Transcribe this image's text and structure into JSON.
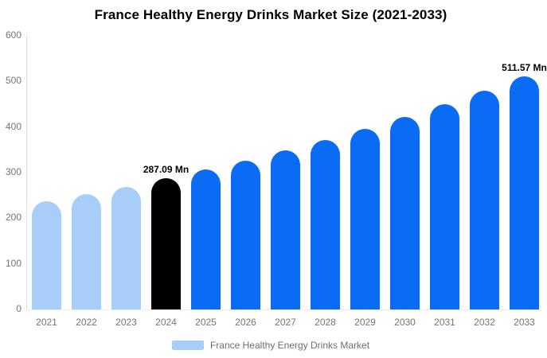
{
  "colors": {
    "historical": "#a6cef8",
    "current": "#000000",
    "forecast": "#0a6bf5",
    "axis_line": "#dcdcdc",
    "tick_text": "#757575",
    "legend_text": "#6e6e6e"
  },
  "chart_data": {
    "type": "bar",
    "title": "France Healthy Energy Drinks Market Size (2021-2033)",
    "categories": [
      "2021",
      "2022",
      "2023",
      "2024",
      "2025",
      "2026",
      "2027",
      "2028",
      "2029",
      "2030",
      "2031",
      "2032",
      "2033"
    ],
    "values": [
      236.8,
      252.5,
      269.2,
      287.09,
      306.2,
      326.5,
      348.1,
      371.3,
      395.9,
      422.2,
      450.2,
      480.1,
      511.57
    ],
    "unit": "Mn",
    "bar_roles": [
      "historical",
      "historical",
      "historical",
      "current",
      "forecast",
      "forecast",
      "forecast",
      "forecast",
      "forecast",
      "forecast",
      "forecast",
      "forecast",
      "forecast"
    ],
    "data_labels": [
      {
        "index": 3,
        "text": "287.09 Mn"
      },
      {
        "index": 12,
        "text": "511.57 Mn"
      }
    ],
    "xlabel": "",
    "ylabel": "",
    "ylim": [
      0,
      600
    ],
    "yticks": [
      0,
      100,
      200,
      300,
      400,
      500,
      600
    ],
    "grid": false,
    "legend_position": "bottom",
    "legend": [
      {
        "label": "France Healthy Energy Drinks Market",
        "swatch_color": "#a6cef8"
      }
    ]
  }
}
